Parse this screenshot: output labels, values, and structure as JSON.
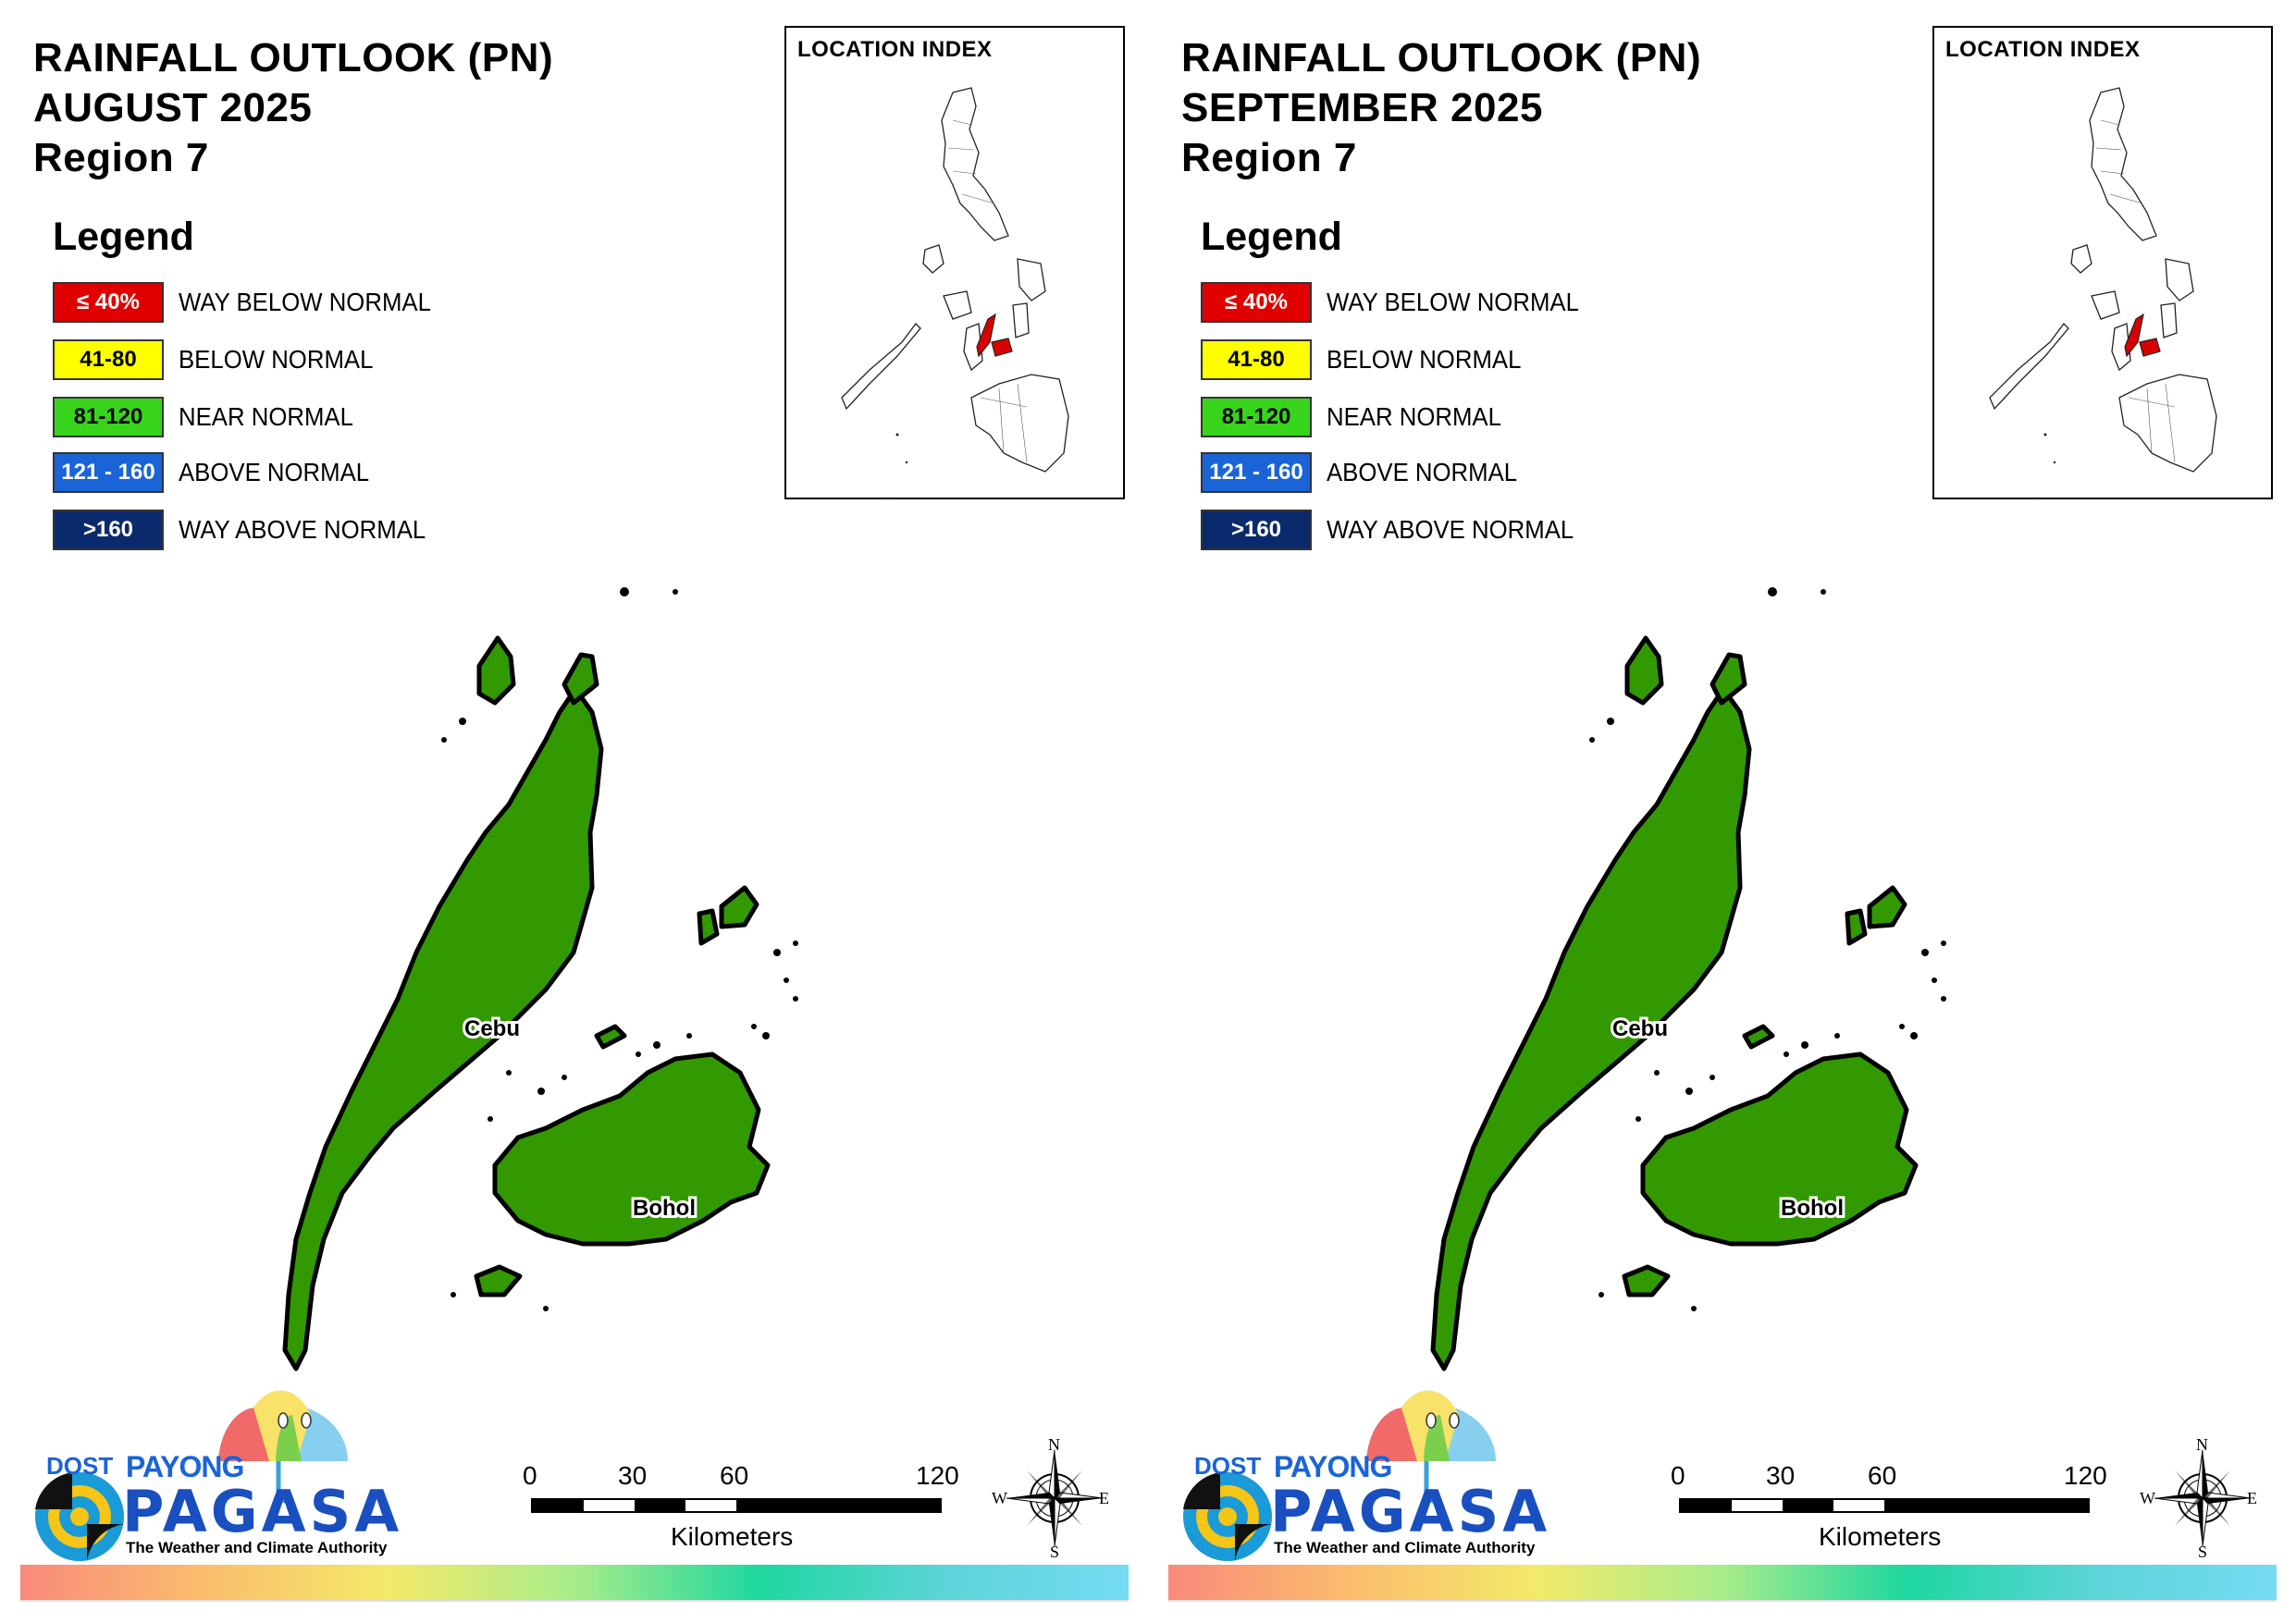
{
  "panels": [
    {
      "title_lines": [
        "RAINFALL OUTLOOK (PN)",
        "AUGUST 2025",
        "Region 7"
      ],
      "legend_heading": "Legend",
      "legend": [
        {
          "range": "≤ 40%",
          "label": "WAY BELOW NORMAL",
          "color": "#e00000",
          "text_color": "#ffffff"
        },
        {
          "range": "41-80",
          "label": "BELOW NORMAL",
          "color": "#ffff00",
          "text_color": "#000000"
        },
        {
          "range": "81-120",
          "label": "NEAR NORMAL",
          "color": "#38d41c",
          "text_color": "#000000"
        },
        {
          "range": "121 - 160",
          "label": "ABOVE NORMAL",
          "color": "#1a64d8",
          "text_color": "#ffffff"
        },
        {
          "range": ">160",
          "label": "WAY ABOVE NORMAL",
          "color": "#0b2a6e",
          "text_color": "#ffffff"
        }
      ],
      "location_index_title": "LOCATION INDEX",
      "provinces": [
        {
          "name": "Cebu",
          "category": "NEAR NORMAL",
          "color": "#339900"
        },
        {
          "name": "Bohol",
          "category": "NEAR NORMAL",
          "color": "#339900"
        }
      ],
      "scale": {
        "ticks": [
          "0",
          "30",
          "60",
          "120"
        ],
        "unit": "Kilometers"
      },
      "compass": {
        "n": "N",
        "e": "E",
        "s": "S",
        "w": "W"
      },
      "logo": {
        "dost": "DOST",
        "payong": "PAYONG",
        "pagasa": "PAGASA",
        "tagline": "The Weather and Climate Authority"
      }
    },
    {
      "title_lines": [
        "RAINFALL OUTLOOK (PN)",
        "SEPTEMBER 2025",
        "Region 7"
      ],
      "legend_heading": "Legend",
      "legend": [
        {
          "range": "≤ 40%",
          "label": "WAY BELOW NORMAL",
          "color": "#e00000",
          "text_color": "#ffffff"
        },
        {
          "range": "41-80",
          "label": "BELOW NORMAL",
          "color": "#ffff00",
          "text_color": "#000000"
        },
        {
          "range": "81-120",
          "label": "NEAR NORMAL",
          "color": "#38d41c",
          "text_color": "#000000"
        },
        {
          "range": "121 - 160",
          "label": "ABOVE NORMAL",
          "color": "#1a64d8",
          "text_color": "#ffffff"
        },
        {
          "range": ">160",
          "label": "WAY ABOVE NORMAL",
          "color": "#0b2a6e",
          "text_color": "#ffffff"
        }
      ],
      "location_index_title": "LOCATION INDEX",
      "provinces": [
        {
          "name": "Cebu",
          "category": "NEAR NORMAL",
          "color": "#339900"
        },
        {
          "name": "Bohol",
          "category": "NEAR NORMAL",
          "color": "#339900"
        }
      ],
      "scale": {
        "ticks": [
          "0",
          "30",
          "60",
          "120"
        ],
        "unit": "Kilometers"
      },
      "compass": {
        "n": "N",
        "e": "E",
        "s": "S",
        "w": "W"
      },
      "logo": {
        "dost": "DOST",
        "payong": "PAYONG",
        "pagasa": "PAGASA",
        "tagline": "The Weather and Climate Authority"
      }
    }
  ]
}
